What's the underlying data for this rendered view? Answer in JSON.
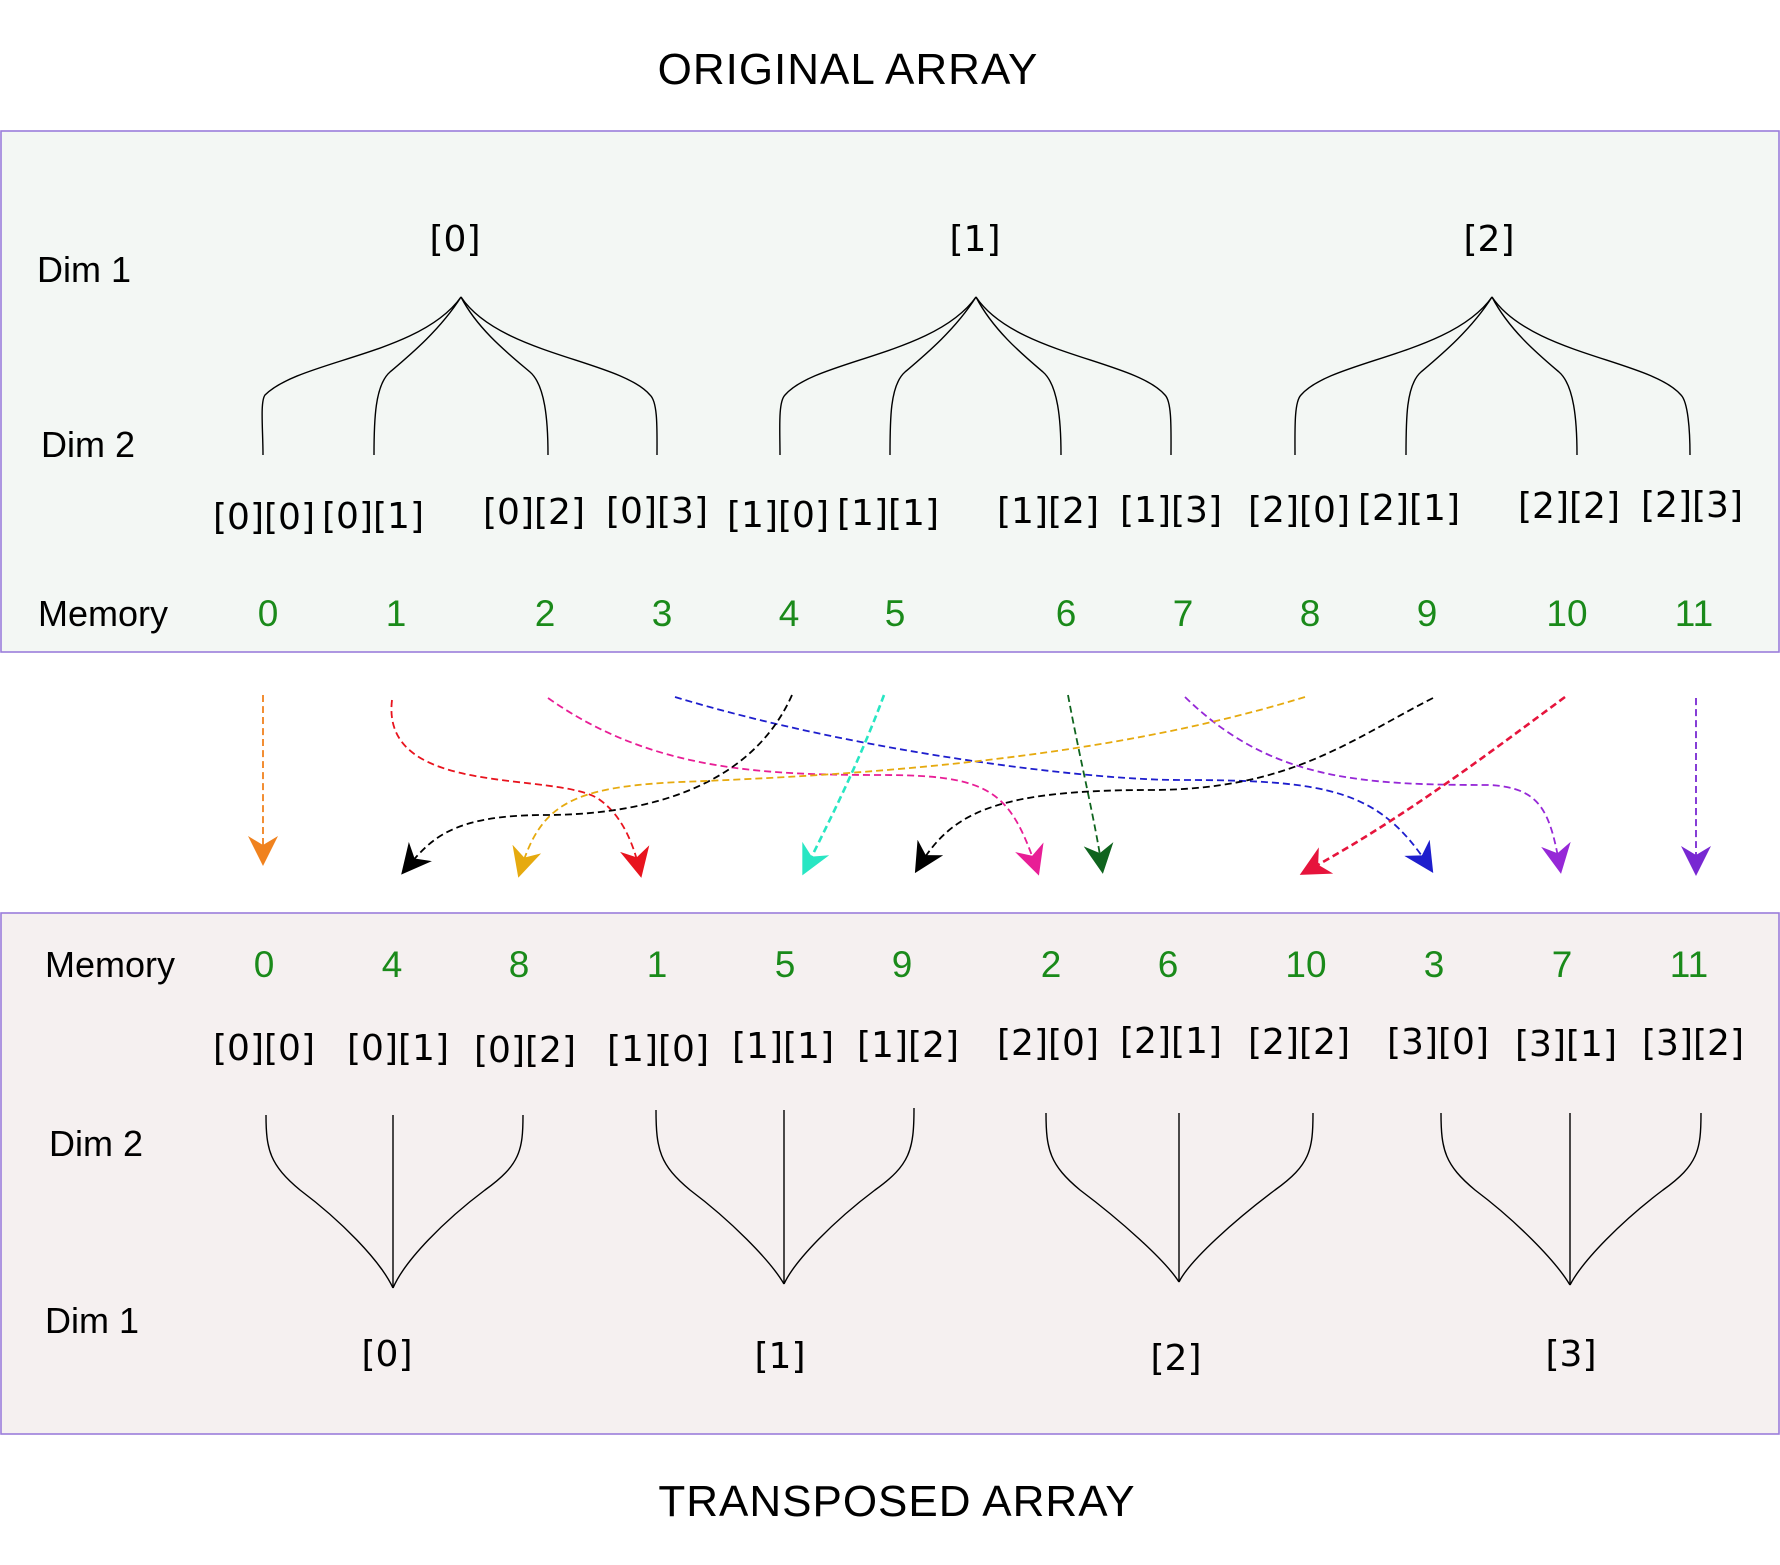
{
  "colors": {
    "memory_text": "#1a8a1a",
    "original_panel_fill": "#f3f7f4",
    "transposed_panel_fill": "#f5f0f0",
    "panel_border": "#9b7ddb"
  },
  "original": {
    "title": "ORIGINAL ARRAY",
    "dim1_label": "Dim 1",
    "dim2_label": "Dim 2",
    "memory_label": "Memory",
    "dim1": [
      "[0]",
      "[1]",
      "[2]"
    ],
    "dim2": [
      "[0][0]",
      "[0][1]",
      "[0][2]",
      "[0][3]",
      "[1][0]",
      "[1][1]",
      "[1][2]",
      "[1][3]",
      "[2][0]",
      "[2][1]",
      "[2][2]",
      "[2][3]"
    ],
    "memory": [
      "0",
      "1",
      "2",
      "3",
      "4",
      "5",
      "6",
      "7",
      "8",
      "9",
      "10",
      "11"
    ]
  },
  "transposed": {
    "title": "TRANSPOSED ARRAY",
    "dim1_label": "Dim 1",
    "dim2_label": "Dim 2",
    "memory_label": "Memory",
    "dim1": [
      "[0]",
      "[1]",
      "[2]",
      "[3]"
    ],
    "dim2": [
      "[0][0]",
      "[0][1]",
      "[0][2]",
      "[1][0]",
      "[1][1]",
      "[1][2]",
      "[2][0]",
      "[2][1]",
      "[2][2]",
      "[3][0]",
      "[3][1]",
      "[3][2]"
    ],
    "memory": [
      "0",
      "4",
      "8",
      "1",
      "5",
      "9",
      "2",
      "6",
      "10",
      "3",
      "7",
      "11"
    ]
  },
  "arrows": [
    {
      "from_memory": "0",
      "to_memory": "0",
      "color": "#f0821e"
    },
    {
      "from_memory": "1",
      "to_memory": "1",
      "color": "#e8141e"
    },
    {
      "from_memory": "2",
      "to_memory": "2",
      "color": "#e81e96"
    },
    {
      "from_memory": "3",
      "to_memory": "3",
      "color": "#1e1ecd"
    },
    {
      "from_memory": "4",
      "to_memory": "4",
      "color": "#000000"
    },
    {
      "from_memory": "5",
      "to_memory": "5",
      "color": "#28e6c3"
    },
    {
      "from_memory": "6",
      "to_memory": "6",
      "color": "#0f641e"
    },
    {
      "from_memory": "7",
      "to_memory": "7",
      "color": "#9628d7"
    },
    {
      "from_memory": "8",
      "to_memory": "8",
      "color": "#e6aa0f"
    },
    {
      "from_memory": "9",
      "to_memory": "9",
      "color": "#000000"
    },
    {
      "from_memory": "10",
      "to_memory": "10",
      "color": "#e6143c"
    },
    {
      "from_memory": "11",
      "to_memory": "11",
      "color": "#7828d2"
    }
  ]
}
